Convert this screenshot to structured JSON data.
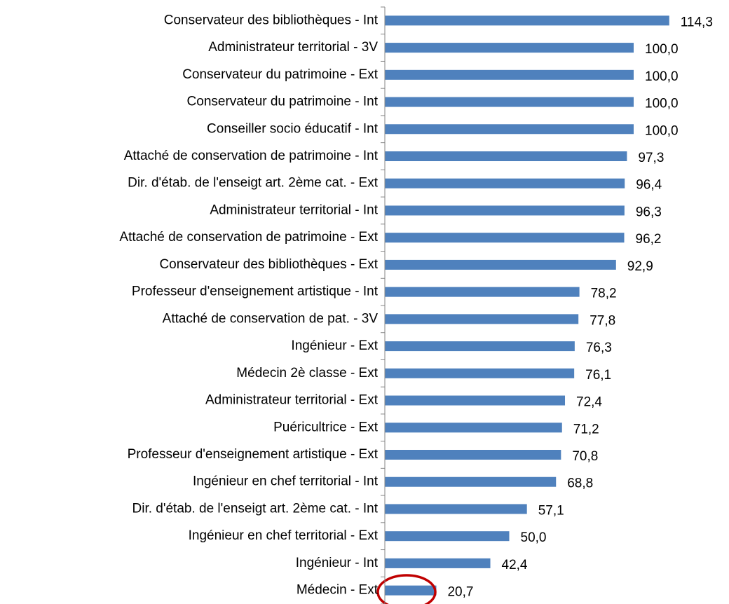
{
  "chart_data": {
    "type": "bar",
    "orientation": "horizontal",
    "categories": [
      "Conservateur des bibliothèques - Int",
      "Administrateur territorial - 3V",
      "Conservateur du patrimoine - Ext",
      "Conservateur du patrimoine - Int",
      "Conseiller socio éducatif - Int",
      "Attaché de conservation de patrimoine - Int",
      "Dir. d'étab. de l'enseigt art. 2ème cat. - Ext",
      "Administrateur territorial - Int",
      "Attaché de conservation de patrimoine - Ext",
      "Conservateur des bibliothèques - Ext",
      "Professeur d'enseignement artistique  - Int",
      "Attaché de conservation de pat. - 3V",
      "Ingénieur - Ext",
      "Médecin 2è classe - Ext",
      "Administrateur territorial - Ext",
      "Puéricultrice  - Ext",
      "Professeur d'enseignement artistique  - Ext",
      "Ingénieur en chef territorial - Int",
      "Dir. d'étab. de l'enseigt art. 2ème cat. - Int",
      "Ingénieur en chef territorial - Ext",
      "Ingénieur - Int",
      "Médecin - Ext"
    ],
    "values": [
      114.3,
      100.0,
      100.0,
      100.0,
      100.0,
      97.3,
      96.4,
      96.3,
      96.2,
      92.9,
      78.2,
      77.8,
      76.3,
      76.1,
      72.4,
      71.2,
      70.8,
      68.8,
      57.1,
      50.0,
      42.4,
      20.7
    ],
    "value_labels": [
      "114,3",
      "100,0",
      "100,0",
      "100,0",
      "100,0",
      "97,3",
      "96,4",
      "96,3",
      "96,2",
      "92,9",
      "78,2",
      "77,8",
      "76,3",
      "76,1",
      "72,4",
      "71,2",
      "70,8",
      "68,8",
      "57,1",
      "50,0",
      "42,4",
      "20,7"
    ],
    "color": "#4f81bd",
    "xlim": [
      0,
      120
    ]
  }
}
